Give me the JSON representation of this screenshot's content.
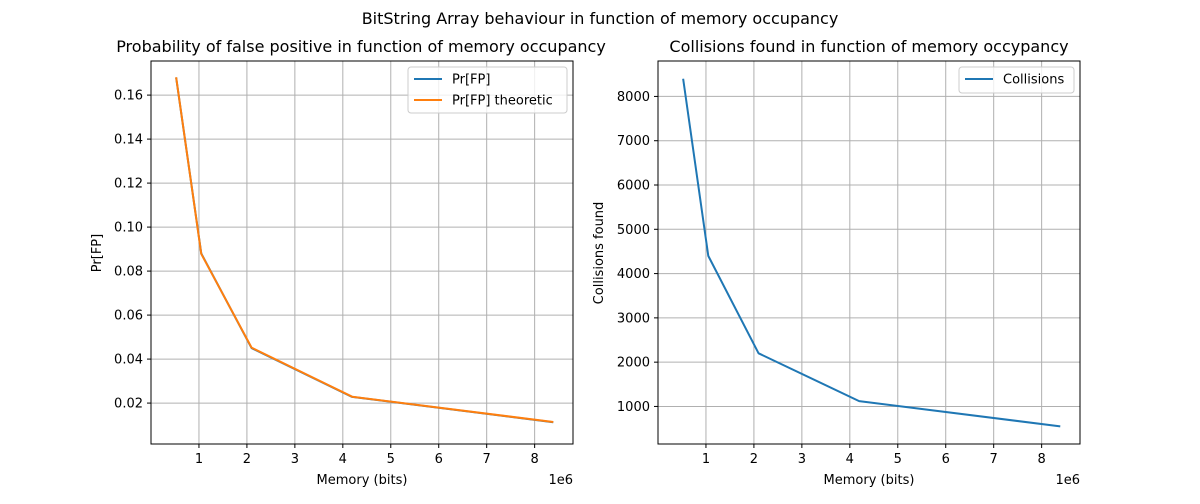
{
  "figure": {
    "suptitle": "BitString Array behaviour in function of memory occupancy"
  },
  "chart_data": [
    {
      "type": "line",
      "title": "Probability of false positive in function of memory occupancy",
      "xlabel": "Memory (bits)",
      "ylabel": "Pr[FP]",
      "x_offset_label": "1e6",
      "x": [
        524288,
        1048576,
        2097152,
        4194304,
        8388608
      ],
      "xlim": [
        0,
        8.8
      ],
      "ylim": [
        0.0014,
        0.1755
      ],
      "xticks": [
        1,
        2,
        3,
        4,
        5,
        6,
        7,
        8
      ],
      "xtick_labels": [
        "1",
        "2",
        "3",
        "4",
        "5",
        "6",
        "7",
        "8"
      ],
      "yticks": [
        0.02,
        0.04,
        0.06,
        0.08,
        0.1,
        0.12,
        0.14,
        0.16
      ],
      "ytick_labels": [
        "0.02",
        "0.04",
        "0.06",
        "0.08",
        "0.10",
        "0.12",
        "0.14",
        "0.16"
      ],
      "grid": true,
      "legend_position": "upper right",
      "series": [
        {
          "name": "Pr[FP]",
          "color": "#1f77b4",
          "values": [
            0.168,
            0.088,
            0.045,
            0.0228,
            0.0113
          ]
        },
        {
          "name": "Pr[FP] theoretic",
          "color": "#ff7f0e",
          "values": [
            0.1681,
            0.0878,
            0.0452,
            0.0229,
            0.0114
          ]
        }
      ]
    },
    {
      "type": "line",
      "title": "Collisions found in function of memory occypancy",
      "xlabel": "Memory (bits)",
      "ylabel": "Collisions found",
      "x_offset_label": "1e6",
      "x": [
        524288,
        1048576,
        2097152,
        4194304,
        8388608
      ],
      "xlim": [
        0,
        8.8
      ],
      "ylim": [
        152,
        8800
      ],
      "xticks": [
        1,
        2,
        3,
        4,
        5,
        6,
        7,
        8
      ],
      "xtick_labels": [
        "1",
        "2",
        "3",
        "4",
        "5",
        "6",
        "7",
        "8"
      ],
      "yticks": [
        1000,
        2000,
        3000,
        4000,
        5000,
        6000,
        7000,
        8000
      ],
      "ytick_labels": [
        "1000",
        "2000",
        "3000",
        "4000",
        "5000",
        "6000",
        "7000",
        "8000"
      ],
      "grid": true,
      "legend_position": "upper right",
      "series": [
        {
          "name": "Collisions",
          "color": "#1f77b4",
          "values": [
            8400,
            4400,
            2200,
            1120,
            550
          ]
        }
      ]
    }
  ]
}
